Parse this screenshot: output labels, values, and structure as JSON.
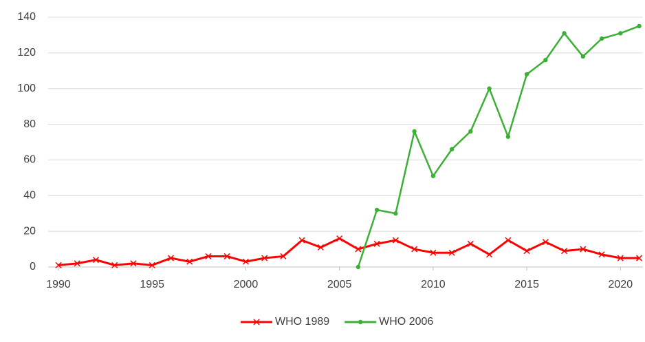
{
  "chart_data": {
    "type": "line",
    "x": [
      1990,
      1991,
      1992,
      1993,
      1994,
      1995,
      1996,
      1997,
      1998,
      1999,
      2000,
      2001,
      2002,
      2003,
      2004,
      2005,
      2006,
      2007,
      2008,
      2009,
      2010,
      2011,
      2012,
      2013,
      2014,
      2015,
      2016,
      2017,
      2018,
      2019,
      2020,
      2021
    ],
    "series": [
      {
        "name": "WHO 1989",
        "color": "#ff0000",
        "marker": "x",
        "values": [
          1,
          2,
          4,
          1,
          2,
          1,
          5,
          3,
          6,
          6,
          3,
          5,
          6,
          15,
          11,
          16,
          10,
          13,
          15,
          10,
          8,
          8,
          13,
          7,
          15,
          9,
          14,
          9,
          10,
          7,
          5,
          5
        ]
      },
      {
        "name": "WHO 2006",
        "color": "#3cb035",
        "marker": "circle",
        "values": [
          null,
          null,
          null,
          null,
          null,
          null,
          null,
          null,
          null,
          null,
          null,
          null,
          null,
          null,
          null,
          null,
          0,
          32,
          30,
          76,
          51,
          66,
          76,
          100,
          73,
          108,
          116,
          131,
          118,
          128,
          131,
          135
        ]
      }
    ],
    "xlim": [
      1989.45,
      2021.2
    ],
    "xticks": [
      1990,
      1995,
      2000,
      2005,
      2010,
      2015,
      2020
    ],
    "ylim": [
      0,
      140
    ],
    "yticks": [
      0,
      20,
      40,
      60,
      80,
      100,
      120,
      140
    ],
    "grid": true,
    "legend": "bottom"
  }
}
